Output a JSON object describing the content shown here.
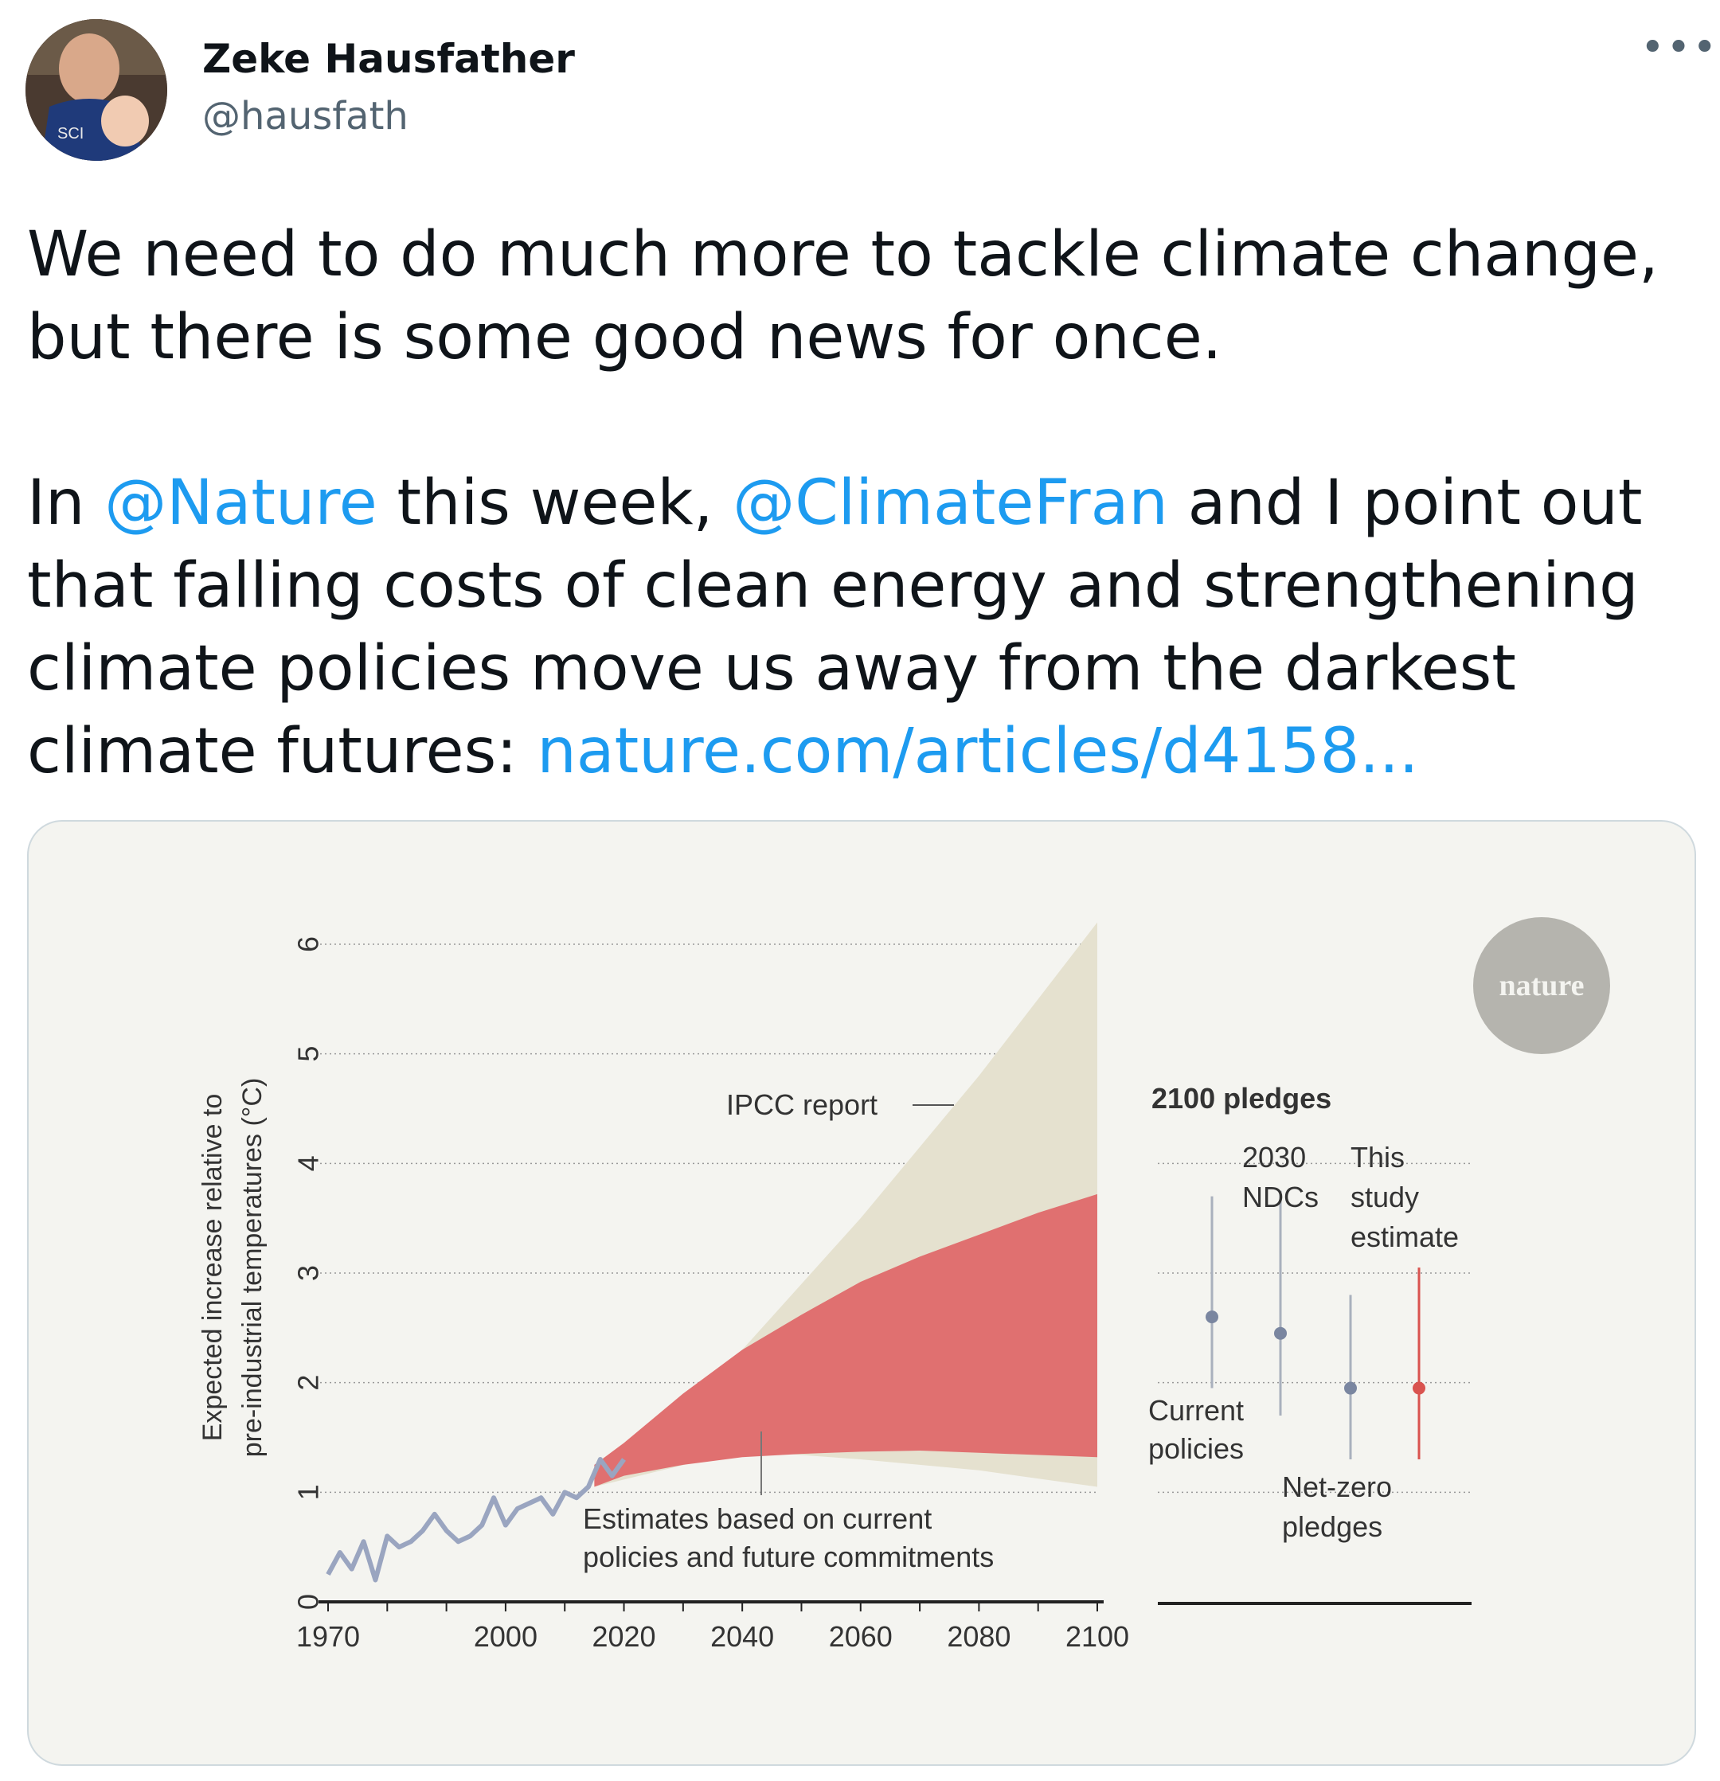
{
  "author": {
    "name": "Zeke Hausfather",
    "handle": "@hausfath"
  },
  "more_icon": "more-horizontal-icon",
  "tweet": {
    "p1": "We need to do much more to tackle climate change, but there is some good news for once.",
    "p2_a": "In ",
    "mention1": "@Nature",
    "p2_b": " this week, ",
    "mention2": "@ClimateFran",
    "p2_c": " and I point out that falling costs of clean energy and strengthening climate policies move us away from the darkest climate futures: ",
    "link": "nature.com/articles/d4158..."
  },
  "colors": {
    "link": "#1d9bf0",
    "ipcc_band": "#e5e1cf",
    "study_band": "#e07070",
    "observed": "#9aa5c0",
    "marker": "#7a86a0",
    "study_marker": "#d9534f"
  },
  "chart_data": [
    {
      "type": "area",
      "ylabel_line1": "Expected increase relative to",
      "ylabel_line2": "pre-industrial temperatures (°C)",
      "ylim": [
        0,
        6
      ],
      "xlim": [
        1970,
        2100
      ],
      "y_ticks": [
        "0",
        "1",
        "2",
        "3",
        "4",
        "5",
        "6"
      ],
      "x_ticks": [
        "1970",
        "2000",
        "2020",
        "2040",
        "2060",
        "2080",
        "2100"
      ],
      "grid": "dotted horizontal",
      "logo": "nature",
      "series": [
        {
          "name": "IPCC report",
          "x": [
            2015,
            2040,
            2060,
            2080,
            2100
          ],
          "upper": [
            1.2,
            2.3,
            3.5,
            4.8,
            6.2
          ],
          "lower": [
            1.05,
            1.38,
            1.3,
            1.2,
            1.05
          ]
        },
        {
          "name": "Estimates based on current policies and future commitments",
          "x": [
            2015,
            2020,
            2030,
            2040,
            2050,
            2060,
            2070,
            2080,
            2090,
            2100
          ],
          "upper": [
            1.25,
            1.45,
            1.9,
            2.3,
            2.62,
            2.92,
            3.15,
            3.35,
            3.55,
            3.72
          ],
          "lower": [
            1.05,
            1.15,
            1.25,
            1.32,
            1.35,
            1.37,
            1.38,
            1.36,
            1.34,
            1.32
          ]
        }
      ],
      "observed": {
        "x": [
          1970,
          1972,
          1974,
          1976,
          1978,
          1980,
          1982,
          1984,
          1986,
          1988,
          1990,
          1992,
          1994,
          1996,
          1998,
          2000,
          2002,
          2004,
          2006,
          2008,
          2010,
          2012,
          2014,
          2016,
          2018,
          2020
        ],
        "y": [
          0.25,
          0.45,
          0.3,
          0.55,
          0.2,
          0.6,
          0.5,
          0.55,
          0.65,
          0.8,
          0.65,
          0.55,
          0.6,
          0.7,
          0.95,
          0.7,
          0.85,
          0.9,
          0.95,
          0.8,
          1.0,
          0.95,
          1.05,
          1.3,
          1.15,
          1.3
        ]
      },
      "annotations": {
        "ipcc": "IPCC report",
        "estimates_line1": "Estimates based on current",
        "estimates_line2": "policies and future commitments"
      }
    },
    {
      "type": "scatter",
      "title": "2100 pledges",
      "categories": [
        "Current policies",
        "2030 NDCs",
        "Net-zero pledges",
        "This study estimate"
      ],
      "point": [
        2.6,
        2.45,
        1.95,
        1.95
      ],
      "range_low": [
        1.95,
        1.7,
        1.3,
        1.3
      ],
      "range_high": [
        3.7,
        3.75,
        2.8,
        3.05
      ],
      "labels": {
        "current_l1": "Current",
        "current_l2": "policies",
        "ndc_l1": "2030",
        "ndc_l2": "NDCs",
        "netzero_l1": "Net-zero",
        "netzero_l2": "pledges",
        "study_l1": "This",
        "study_l2": "study",
        "study_l3": "estimate"
      }
    }
  ]
}
